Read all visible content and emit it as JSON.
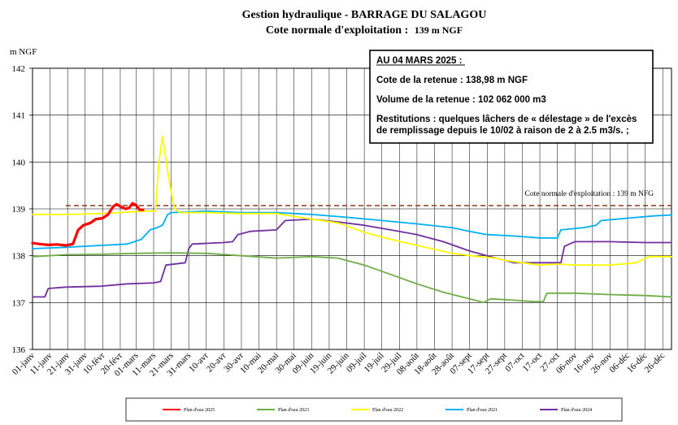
{
  "chart_data": {
    "type": "line",
    "title": "Gestion hydraulique - BARRAGE DU SALAGOU",
    "subtitle_prefix": "Cote normale d'exploitation :",
    "subtitle_value": "139 m NGF",
    "ylabel": "m NGF",
    "ylim": [
      136,
      142
    ],
    "yticks": [
      "136",
      "137",
      "138",
      "139",
      "140",
      "141",
      "142"
    ],
    "xlim": [
      1,
      365
    ],
    "x_ticks": [
      {
        "day": 1,
        "label": "01-janv"
      },
      {
        "day": 11,
        "label": "11-janv"
      },
      {
        "day": 21,
        "label": "21-janv"
      },
      {
        "day": 31,
        "label": "31-janv"
      },
      {
        "day": 41,
        "label": "10-févr"
      },
      {
        "day": 51,
        "label": "20-févr"
      },
      {
        "day": 60,
        "label": "01-mars"
      },
      {
        "day": 70,
        "label": "11-mars"
      },
      {
        "day": 80,
        "label": "21-mars"
      },
      {
        "day": 90,
        "label": "31-mars"
      },
      {
        "day": 100,
        "label": "10-avr"
      },
      {
        "day": 110,
        "label": "20-avr"
      },
      {
        "day": 120,
        "label": "30-avr"
      },
      {
        "day": 130,
        "label": "10-mai"
      },
      {
        "day": 140,
        "label": "20-mai"
      },
      {
        "day": 150,
        "label": "30-mai"
      },
      {
        "day": 160,
        "label": "09-juin"
      },
      {
        "day": 170,
        "label": "19-juin"
      },
      {
        "day": 180,
        "label": "29-juin"
      },
      {
        "day": 190,
        "label": "09-juil"
      },
      {
        "day": 200,
        "label": "19-juil"
      },
      {
        "day": 210,
        "label": "29-juil"
      },
      {
        "day": 220,
        "label": "08-août"
      },
      {
        "day": 230,
        "label": "18-août"
      },
      {
        "day": 240,
        "label": "28-août"
      },
      {
        "day": 250,
        "label": "07-sept"
      },
      {
        "day": 260,
        "label": "17-sept"
      },
      {
        "day": 270,
        "label": "27-sept"
      },
      {
        "day": 280,
        "label": "07-oct"
      },
      {
        "day": 290,
        "label": "17-oct"
      },
      {
        "day": 300,
        "label": "27-oct"
      },
      {
        "day": 310,
        "label": "06-nov"
      },
      {
        "day": 320,
        "label": "16-nov"
      },
      {
        "day": 330,
        "label": "26-nov"
      },
      {
        "day": 340,
        "label": "06-déc"
      },
      {
        "day": 350,
        "label": "16-déc"
      },
      {
        "day": 360,
        "label": "26-déc"
      }
    ],
    "reference_line": {
      "y": 139.07,
      "label": "Cote normale d'exploitation : 139 m NFG",
      "color": "#8b3a1a"
    },
    "grid": true,
    "legend_position": "bottom",
    "series": [
      {
        "name": "Plan d'eau 2025",
        "color": "#ff0000",
        "width": 3.2,
        "points": [
          [
            1,
            138.27
          ],
          [
            5,
            138.25
          ],
          [
            10,
            138.23
          ],
          [
            15,
            138.24
          ],
          [
            20,
            138.22
          ],
          [
            24,
            138.25
          ],
          [
            27,
            138.55
          ],
          [
            30,
            138.65
          ],
          [
            34,
            138.7
          ],
          [
            37,
            138.78
          ],
          [
            41,
            138.8
          ],
          [
            44,
            138.88
          ],
          [
            47,
            139.05
          ],
          [
            49,
            139.1
          ],
          [
            51,
            139.05
          ],
          [
            54,
            139.0
          ],
          [
            56,
            139.02
          ],
          [
            58,
            139.12
          ],
          [
            60,
            139.08
          ],
          [
            62,
            138.98
          ],
          [
            64,
            138.98
          ]
        ]
      },
      {
        "name": "Plan d'eau 2023",
        "color": "#70ad47",
        "width": 1.8,
        "points": [
          [
            1,
            137.98
          ],
          [
            20,
            138.02
          ],
          [
            40,
            138.03
          ],
          [
            60,
            138.05
          ],
          [
            80,
            138.06
          ],
          [
            100,
            138.05
          ],
          [
            120,
            138.0
          ],
          [
            140,
            137.95
          ],
          [
            160,
            137.98
          ],
          [
            175,
            137.95
          ],
          [
            190,
            137.8
          ],
          [
            205,
            137.6
          ],
          [
            220,
            137.4
          ],
          [
            235,
            137.22
          ],
          [
            250,
            137.08
          ],
          [
            258,
            137.0
          ],
          [
            262,
            137.08
          ],
          [
            275,
            137.05
          ],
          [
            287,
            137.02
          ],
          [
            292,
            137.02
          ],
          [
            294,
            137.2
          ],
          [
            310,
            137.2
          ],
          [
            330,
            137.17
          ],
          [
            350,
            137.15
          ],
          [
            365,
            137.12
          ]
        ]
      },
      {
        "name": "Plan d'eau 2022",
        "color": "#ffff00",
        "width": 1.8,
        "points": [
          [
            1,
            138.88
          ],
          [
            20,
            138.88
          ],
          [
            40,
            138.9
          ],
          [
            55,
            138.93
          ],
          [
            65,
            138.95
          ],
          [
            71,
            138.95
          ],
          [
            73,
            140.0
          ],
          [
            75,
            140.55
          ],
          [
            78,
            139.8
          ],
          [
            80,
            139.35
          ],
          [
            82,
            139.0
          ],
          [
            85,
            138.92
          ],
          [
            100,
            138.92
          ],
          [
            120,
            138.9
          ],
          [
            140,
            138.9
          ],
          [
            160,
            138.78
          ],
          [
            175,
            138.7
          ],
          [
            190,
            138.5
          ],
          [
            205,
            138.35
          ],
          [
            220,
            138.22
          ],
          [
            240,
            138.05
          ],
          [
            255,
            137.98
          ],
          [
            265,
            137.95
          ],
          [
            270,
            137.9
          ],
          [
            280,
            137.85
          ],
          [
            290,
            137.8
          ],
          [
            300,
            137.82
          ],
          [
            310,
            137.8
          ],
          [
            330,
            137.8
          ],
          [
            345,
            137.85
          ],
          [
            352,
            137.98
          ],
          [
            365,
            137.98
          ]
        ]
      },
      {
        "name": "Plan d'eau 2021",
        "color": "#00b0f0",
        "width": 1.8,
        "points": [
          [
            1,
            138.15
          ],
          [
            20,
            138.18
          ],
          [
            40,
            138.22
          ],
          [
            55,
            138.25
          ],
          [
            63,
            138.35
          ],
          [
            68,
            138.55
          ],
          [
            72,
            138.6
          ],
          [
            75,
            138.65
          ],
          [
            78,
            138.88
          ],
          [
            80,
            138.92
          ],
          [
            100,
            138.95
          ],
          [
            120,
            138.92
          ],
          [
            140,
            138.92
          ],
          [
            160,
            138.88
          ],
          [
            180,
            138.82
          ],
          [
            200,
            138.75
          ],
          [
            220,
            138.68
          ],
          [
            240,
            138.6
          ],
          [
            250,
            138.52
          ],
          [
            260,
            138.45
          ],
          [
            275,
            138.42
          ],
          [
            290,
            138.38
          ],
          [
            300,
            138.38
          ],
          [
            302,
            138.55
          ],
          [
            315,
            138.6
          ],
          [
            322,
            138.65
          ],
          [
            325,
            138.75
          ],
          [
            340,
            138.8
          ],
          [
            355,
            138.85
          ],
          [
            365,
            138.87
          ]
        ]
      },
      {
        "name": "Plan d'eau 2024",
        "color": "#7030a0",
        "width": 1.8,
        "points": [
          [
            1,
            137.12
          ],
          [
            8,
            137.12
          ],
          [
            10,
            137.3
          ],
          [
            20,
            137.33
          ],
          [
            40,
            137.35
          ],
          [
            55,
            137.4
          ],
          [
            70,
            137.42
          ],
          [
            74,
            137.45
          ],
          [
            77,
            137.8
          ],
          [
            88,
            137.85
          ],
          [
            90,
            138.15
          ],
          [
            92,
            138.25
          ],
          [
            110,
            138.28
          ],
          [
            115,
            138.3
          ],
          [
            118,
            138.45
          ],
          [
            125,
            138.52
          ],
          [
            140,
            138.55
          ],
          [
            145,
            138.75
          ],
          [
            160,
            138.78
          ],
          [
            175,
            138.72
          ],
          [
            190,
            138.65
          ],
          [
            205,
            138.55
          ],
          [
            220,
            138.45
          ],
          [
            235,
            138.3
          ],
          [
            250,
            138.1
          ],
          [
            260,
            138.0
          ],
          [
            270,
            137.9
          ],
          [
            275,
            137.85
          ],
          [
            290,
            137.85
          ],
          [
            302,
            137.85
          ],
          [
            304,
            138.2
          ],
          [
            310,
            138.3
          ],
          [
            330,
            138.3
          ],
          [
            350,
            138.28
          ],
          [
            365,
            138.28
          ]
        ]
      }
    ]
  },
  "info_box": {
    "header": "AU 04 MARS 2025 :",
    "cote_label": "Cote de la retenue : 138,98 m NGF",
    "volume_label": "Volume de la retenue : 102 062 000 m3",
    "restitutions_line1": "Restitutions : quelques lâchers de « délestage » de l'excès",
    "restitutions_line2": "de remplissage depuis le 10/02 à raison de 2 à 2.5 m3/s. ;"
  }
}
